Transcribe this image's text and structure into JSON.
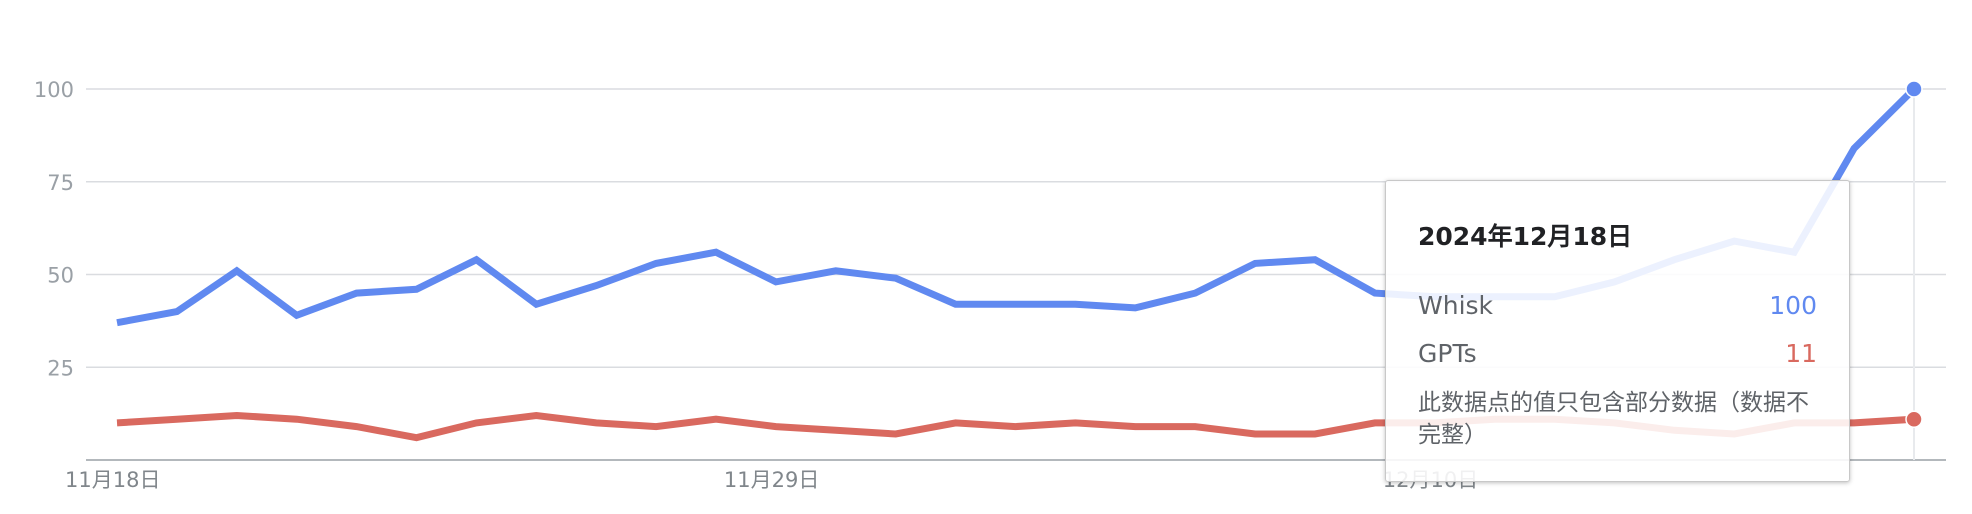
{
  "chart_data": {
    "type": "line",
    "x": [
      "11月18日",
      "11月19日",
      "11月20日",
      "11月21日",
      "11月22日",
      "11月23日",
      "11月24日",
      "11月25日",
      "11月26日",
      "11月27日",
      "11月28日",
      "11月29日",
      "11月30日",
      "12月1日",
      "12月2日",
      "12月3日",
      "12月4日",
      "12月5日",
      "12月6日",
      "12月7日",
      "12月8日",
      "12月9日",
      "12月10日",
      "12月11日",
      "12月12日",
      "12月13日",
      "12月14日",
      "12月15日",
      "12月16日",
      "12月17日",
      "12月18日"
    ],
    "x_tick_labels": [
      "11月18日",
      "11月29日",
      "12月10日"
    ],
    "series": [
      {
        "name": "Whisk",
        "color": "#6089f0",
        "values": [
          37,
          40,
          51,
          39,
          45,
          46,
          54,
          42,
          47,
          53,
          56,
          48,
          51,
          49,
          42,
          42,
          42,
          41,
          45,
          53,
          54,
          45,
          44,
          44,
          44,
          48,
          54,
          59,
          56,
          84,
          100
        ]
      },
      {
        "name": "GPTs",
        "color": "#d9695f",
        "values": [
          10,
          11,
          12,
          11,
          9,
          6,
          10,
          12,
          10,
          9,
          11,
          9,
          8,
          7,
          10,
          9,
          10,
          9,
          9,
          7,
          7,
          10,
          10,
          11,
          11,
          10,
          8,
          7,
          10,
          10,
          11
        ]
      }
    ],
    "yticks": [
      25,
      50,
      75,
      100
    ],
    "ylim": [
      0,
      100
    ],
    "grid": true,
    "xlabel": "",
    "ylabel": ""
  },
  "tooltip": {
    "date": "2024年12月18日",
    "rows": [
      {
        "label": "Whisk",
        "value": "100",
        "color": "#6089f0"
      },
      {
        "label": "GPTs",
        "value": "11",
        "color": "#d9695f"
      }
    ],
    "note": "此数据点的值只包含部分数据（数据不完整）"
  }
}
